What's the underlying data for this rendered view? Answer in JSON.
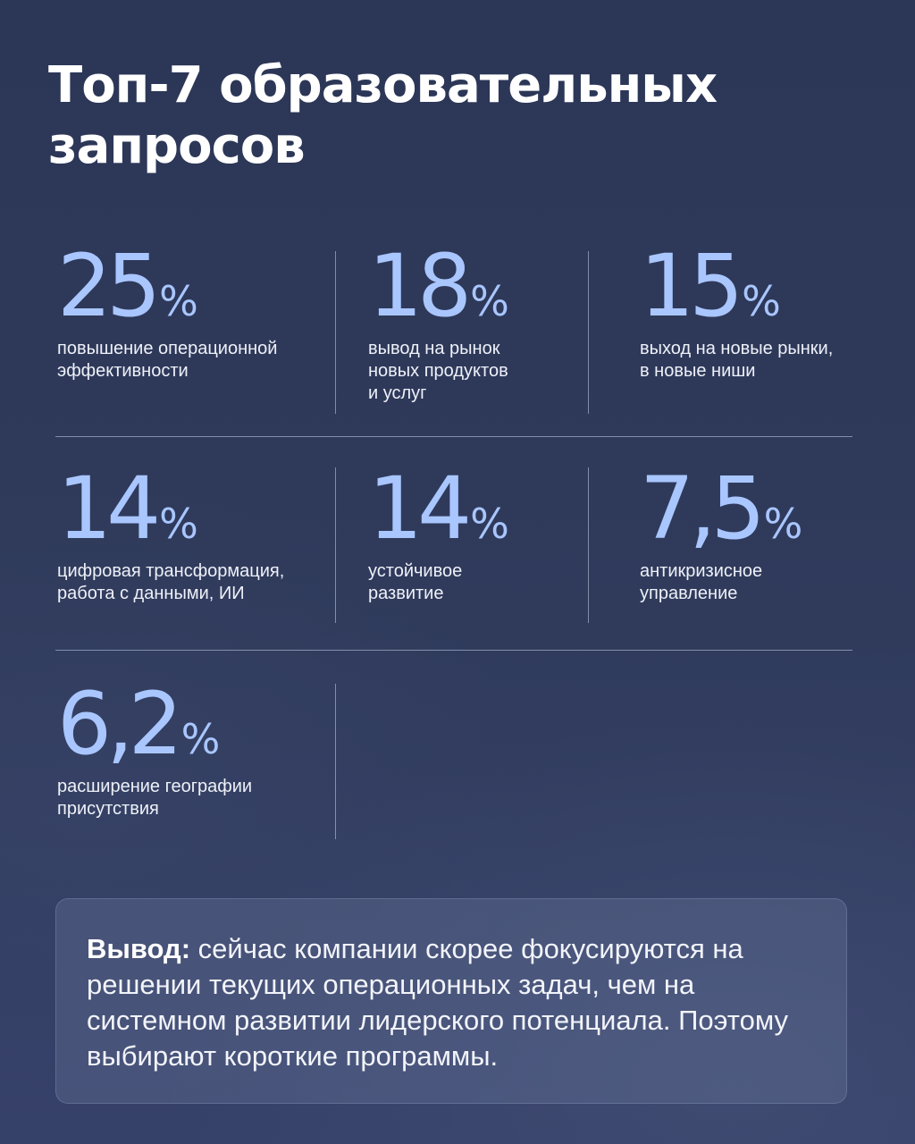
{
  "title": "Топ-7 образовательных запросов",
  "stats": [
    {
      "value": "25",
      "unit": "%",
      "label": "повышение операционной\nэффективности"
    },
    {
      "value": "18",
      "unit": "%",
      "label": "вывод на рынок\nновых продуктов\nи услуг"
    },
    {
      "value": "15",
      "unit": "%",
      "label": "выход на новые рынки,\nв новые ниши"
    },
    {
      "value": "14",
      "unit": "%",
      "label": "цифровая трансформация,\nработа с данными, ИИ"
    },
    {
      "value": "14",
      "unit": "%",
      "label": "устойчивое\nразвитие"
    },
    {
      "value": "7,5",
      "unit": "%",
      "label": "антикризисное\nуправление"
    },
    {
      "value": "6,2",
      "unit": "%",
      "label": "расширение географии\nприсутствия"
    }
  ],
  "conclusion": {
    "lead": "Вывод:",
    "text": " сейчас компании скорее фокусируются на решении текущих операционных задач, чем на системном развитии лидерского потенциала. Поэтому выбирают короткие программы."
  }
}
